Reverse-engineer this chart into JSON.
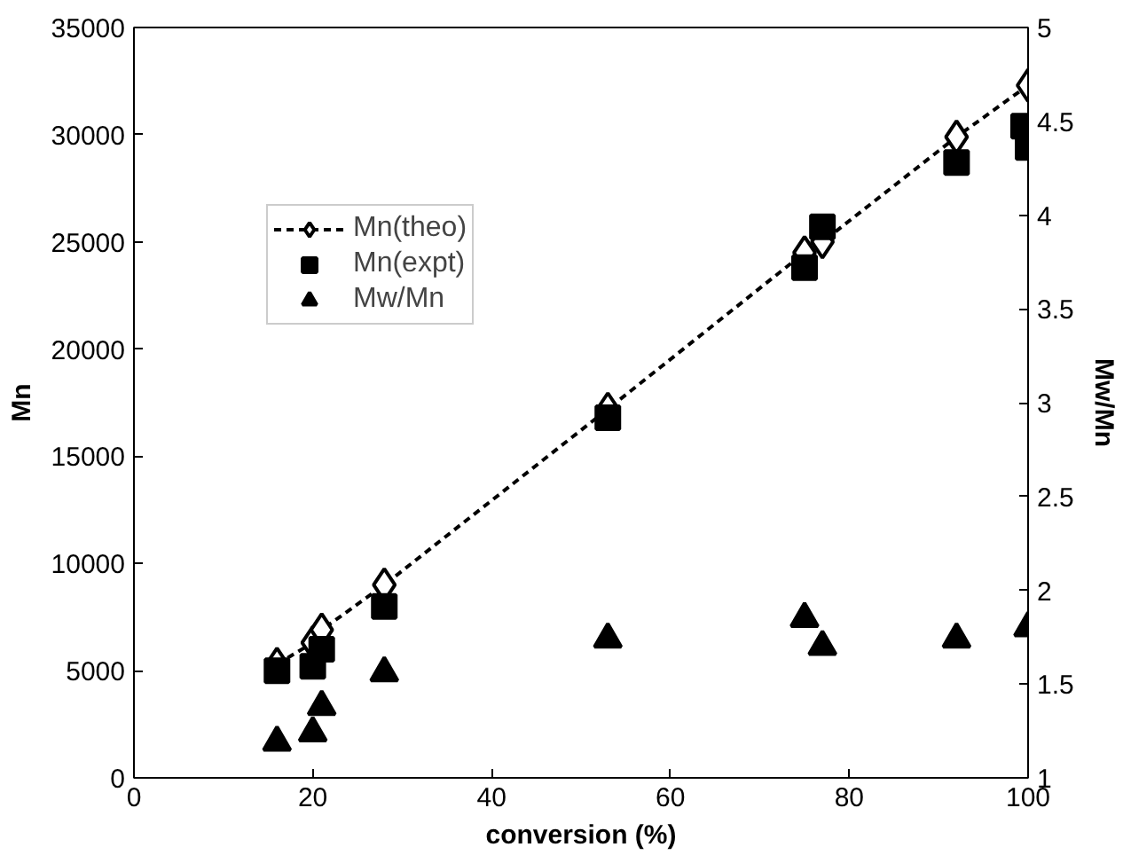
{
  "chart_data": {
    "type": "scatter",
    "xlabel": "conversion (%)",
    "ylabel": "Mn",
    "y2label": "Mw/Mn",
    "xlim": [
      0,
      100
    ],
    "xticks": [
      0,
      20,
      40,
      60,
      80,
      100
    ],
    "ylim": [
      0,
      35000
    ],
    "yticks": [
      0,
      5000,
      10000,
      15000,
      20000,
      25000,
      30000,
      35000
    ],
    "y2lim": [
      1,
      5
    ],
    "y2ticks": [
      1,
      1.5,
      2,
      2.5,
      3,
      3.5,
      4,
      4.5,
      5
    ],
    "grid": false,
    "legend": "top left",
    "series": [
      {
        "name": "Mn(theo)",
        "type": "line",
        "marker": "diamond",
        "line_style": "dashed",
        "color": "#000000",
        "x": [
          16,
          20,
          21,
          28,
          53,
          75,
          77,
          92,
          100
        ],
        "values": [
          5300,
          6300,
          6900,
          9000,
          17200,
          24500,
          25000,
          29900,
          32300
        ]
      },
      {
        "name": "Mn(expt)",
        "marker": "square",
        "color": "#000000",
        "x": [
          16,
          20,
          21,
          28,
          53,
          75,
          77,
          92,
          99.5,
          100
        ],
        "values": [
          5000,
          5200,
          6000,
          8000,
          16800,
          23800,
          25700,
          28700,
          30400,
          29400
        ]
      },
      {
        "name": "Mw/Mn",
        "marker": "triangle",
        "axis": "y2",
        "color": "#000000",
        "x": [
          16,
          20,
          21,
          28,
          53,
          75,
          77,
          92,
          100
        ],
        "values": [
          1.19,
          1.24,
          1.38,
          1.56,
          1.74,
          1.85,
          1.7,
          1.74,
          1.8
        ]
      }
    ]
  }
}
